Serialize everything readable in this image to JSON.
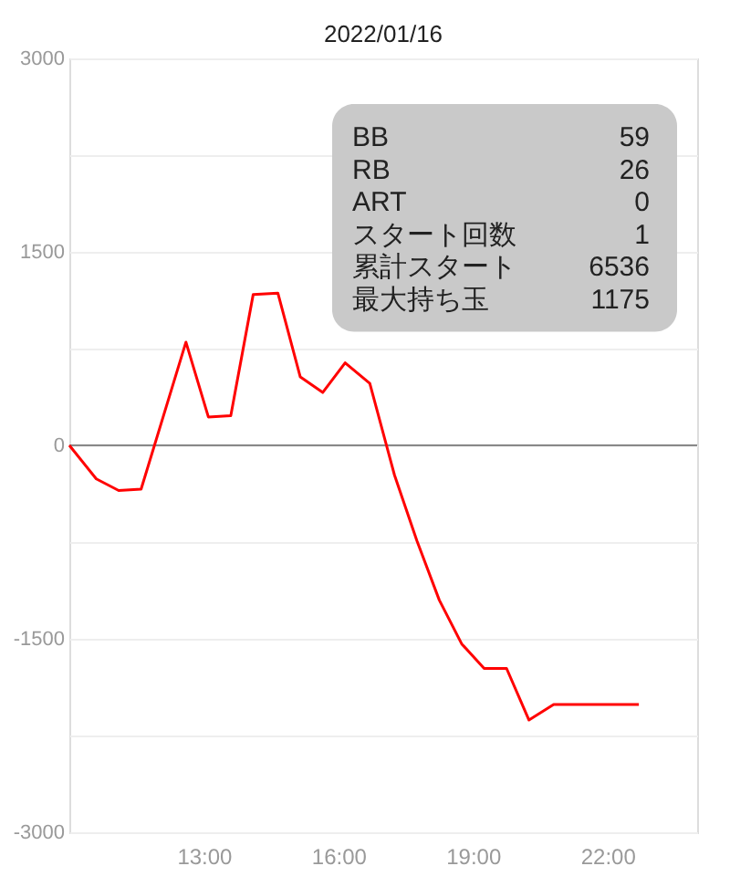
{
  "chart_data": {
    "type": "line",
    "title": "2022/01/16",
    "x": [
      10.0,
      10.6,
      11.1,
      11.6,
      12.6,
      13.1,
      13.6,
      14.1,
      14.65,
      15.15,
      15.65,
      16.15,
      16.7,
      17.25,
      17.75,
      18.25,
      18.75,
      19.25,
      19.75,
      20.25,
      20.8,
      22.7
    ],
    "series": [
      {
        "color": "#ff0000",
        "values": [
          0,
          -260,
          -350,
          -340,
          800,
          220,
          230,
          1170,
          1180,
          530,
          410,
          640,
          480,
          -230,
          -740,
          -1200,
          -1540,
          -1730,
          -1730,
          -2130,
          -2010,
          -2010
        ]
      }
    ],
    "xlim": [
      10,
      24
    ],
    "xticks": [
      {
        "value": 13,
        "label": "13:00"
      },
      {
        "value": 16,
        "label": "16:00"
      },
      {
        "value": 19,
        "label": "19:00"
      },
      {
        "value": 22,
        "label": "22:00"
      }
    ],
    "ylim": [
      -3000,
      3000
    ],
    "yticks": [
      -3000,
      {
        "value": -2250,
        "label": null
      },
      -1500,
      {
        "value": -750,
        "label": null
      },
      0,
      {
        "value": 750,
        "label": null
      },
      1500,
      {
        "value": 2250,
        "label": null
      },
      3000
    ],
    "grid": "y",
    "line_style": "solid",
    "ref_lines": [
      {
        "axis": "y",
        "value": 0,
        "color": "#888888"
      }
    ],
    "annotations": [
      "BB",
      "59",
      "RB",
      "26",
      "ART",
      "0",
      "スタート回数",
      "1",
      "累計スタート",
      "6536",
      "最大持ち玉",
      "1175"
    ]
  }
}
